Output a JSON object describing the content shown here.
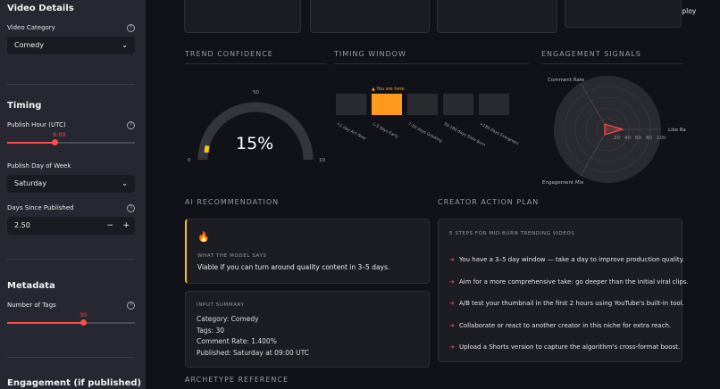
{
  "sidebar": {
    "video_details_title": "Video Details",
    "category_label": "Video Category",
    "category_value": "Comedy",
    "timing_title": "Timing",
    "publish_hour_label": "Publish Hour (UTC)",
    "publish_hour_value": "9:00",
    "publish_hour_fraction": 0.375,
    "publish_day_label": "Publish Day of Week",
    "publish_day_value": "Saturday",
    "days_since_label": "Days Since Published",
    "days_since_value": "2.50",
    "metadata_title": "Metadata",
    "tags_label": "Number of Tags",
    "tags_value": "30",
    "tags_fraction": 0.6,
    "engagement_title": "Engagement (if published)"
  },
  "header": {
    "deploy_label": "Deploy"
  },
  "trend_confidence": {
    "title": "TREND CONFIDENCE",
    "value_text": "15%",
    "value_fraction": 0.15,
    "tick_0": "0",
    "tick_50": "50",
    "tick_10": "10",
    "accent_color": "#f5c518"
  },
  "timing_window": {
    "title": "TIMING WINDOW",
    "marker_label": "▲ You are here",
    "active_index": 1,
    "active_color": "#ff9a1f",
    "windows": [
      "<1 day Act Now",
      "1-3 days Early",
      "7-30 days Growing",
      "30-180 days Slow Burn",
      ">180 days Evergreen"
    ]
  },
  "engagement_signals": {
    "title": "ENGAGEMENT SIGNALS",
    "axis_comment": "Comment Rate",
    "axis_like": "Like Ra",
    "axis_mix": "Engagement Mix",
    "ticks": [
      "20",
      "40",
      "60",
      "80",
      "100"
    ]
  },
  "ai_recommendation": {
    "title": "AI RECOMMENDATION",
    "icon": "fire-icon",
    "emoji": "🔥",
    "model_says_label": "WHAT THE MODEL SAYS",
    "model_says_text": "Viable if you can turn around quality content in 3–5 days.",
    "summary_label": "INPUT SUMMARY",
    "summary_lines": [
      "Category: Comedy",
      "Tags: 30",
      "Comment Rate: 1.400%",
      "Published: Saturday at 09:00 UTC"
    ]
  },
  "action_plan": {
    "title": "CREATOR ACTION PLAN",
    "subtitle": "5 STEPS FOR MID-BURN TRENDING VIDEOS",
    "items": [
      "You have a 3–5 day window — take a day to improve production quality.",
      "Aim for a more comprehensive take: go deeper than the initial viral clips.",
      "A/B test your thumbnail in the first 2 hours using YouTube's built-in tool.",
      "Collaborate or react to another creator in this niche for extra reach.",
      "Upload a Shorts version to capture the algorithm's cross-format boost."
    ]
  },
  "archetype": {
    "title": "ARCHETYPE REFERENCE"
  }
}
